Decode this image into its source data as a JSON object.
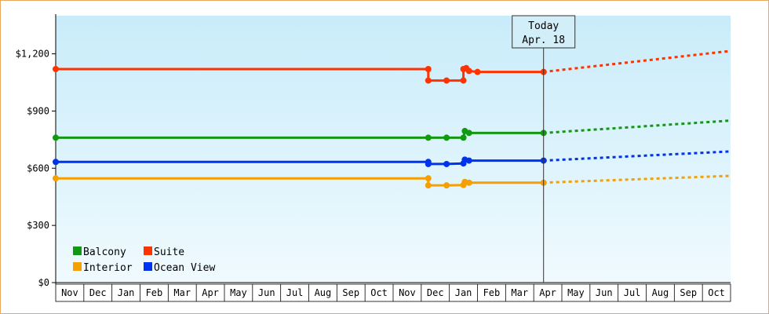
{
  "chart_data": {
    "type": "line",
    "title": "",
    "xlabel": "",
    "ylabel": "",
    "ylim": [
      0,
      1400
    ],
    "y_ticks": [
      {
        "value": 0,
        "label": "$0"
      },
      {
        "value": 300,
        "label": "$300"
      },
      {
        "value": 600,
        "label": "$600"
      },
      {
        "value": 900,
        "label": "$900"
      },
      {
        "value": 1200,
        "label": "$1,200"
      }
    ],
    "x_ticks": [
      "Nov",
      "Dec",
      "Jan",
      "Feb",
      "Mar",
      "Apr",
      "May",
      "Jun",
      "Jul",
      "Aug",
      "Sep",
      "Oct",
      "Nov",
      "Dec",
      "Jan",
      "Feb",
      "Mar",
      "Apr",
      "May",
      "Jun",
      "Jul",
      "Aug",
      "Sep",
      "Oct"
    ],
    "today_marker": {
      "line1": "Today",
      "line2": "Apr. 18",
      "x": 17.35
    },
    "legend_position": "bottom-left",
    "background_gradient": [
      "#c9ecfa",
      "#f0fafe"
    ],
    "series": [
      {
        "name": "Suite",
        "color": "#ff3300",
        "points": [
          [
            0,
            1120
          ],
          [
            13.25,
            1120
          ],
          [
            13.25,
            1060
          ],
          [
            13.9,
            1060
          ],
          [
            14.5,
            1060
          ],
          [
            14.5,
            1120
          ],
          [
            14.6,
            1125
          ],
          [
            14.7,
            1110
          ],
          [
            15.0,
            1105
          ],
          [
            17.35,
            1105
          ]
        ],
        "forecast": [
          [
            17.35,
            1105
          ],
          [
            24.0,
            1215
          ]
        ]
      },
      {
        "name": "Balcony",
        "color": "#119911",
        "points": [
          [
            0,
            760
          ],
          [
            13.25,
            760
          ],
          [
            13.9,
            760
          ],
          [
            14.5,
            760
          ],
          [
            14.55,
            795
          ],
          [
            14.7,
            785
          ],
          [
            17.35,
            785
          ]
        ],
        "forecast": [
          [
            17.35,
            785
          ],
          [
            24.0,
            850
          ]
        ]
      },
      {
        "name": "Ocean View",
        "color": "#0033ee",
        "points": [
          [
            0,
            633
          ],
          [
            13.25,
            633
          ],
          [
            13.25,
            622
          ],
          [
            13.9,
            622
          ],
          [
            14.5,
            625
          ],
          [
            14.55,
            645
          ],
          [
            14.7,
            640
          ],
          [
            17.35,
            640
          ]
        ],
        "forecast": [
          [
            17.35,
            640
          ],
          [
            24.0,
            688
          ]
        ]
      },
      {
        "name": "Interior",
        "color": "#f5a000",
        "points": [
          [
            0,
            547
          ],
          [
            13.25,
            547
          ],
          [
            13.25,
            510
          ],
          [
            13.9,
            510
          ],
          [
            14.5,
            512
          ],
          [
            14.55,
            528
          ],
          [
            14.7,
            524
          ],
          [
            17.35,
            524
          ]
        ],
        "forecast": [
          [
            17.35,
            524
          ],
          [
            24.0,
            560
          ]
        ]
      }
    ],
    "legend": [
      {
        "name": "Balcony",
        "color": "#119911"
      },
      {
        "name": "Suite",
        "color": "#ff3300"
      },
      {
        "name": "Interior",
        "color": "#f5a000"
      },
      {
        "name": "Ocean View",
        "color": "#0033ee"
      }
    ]
  }
}
